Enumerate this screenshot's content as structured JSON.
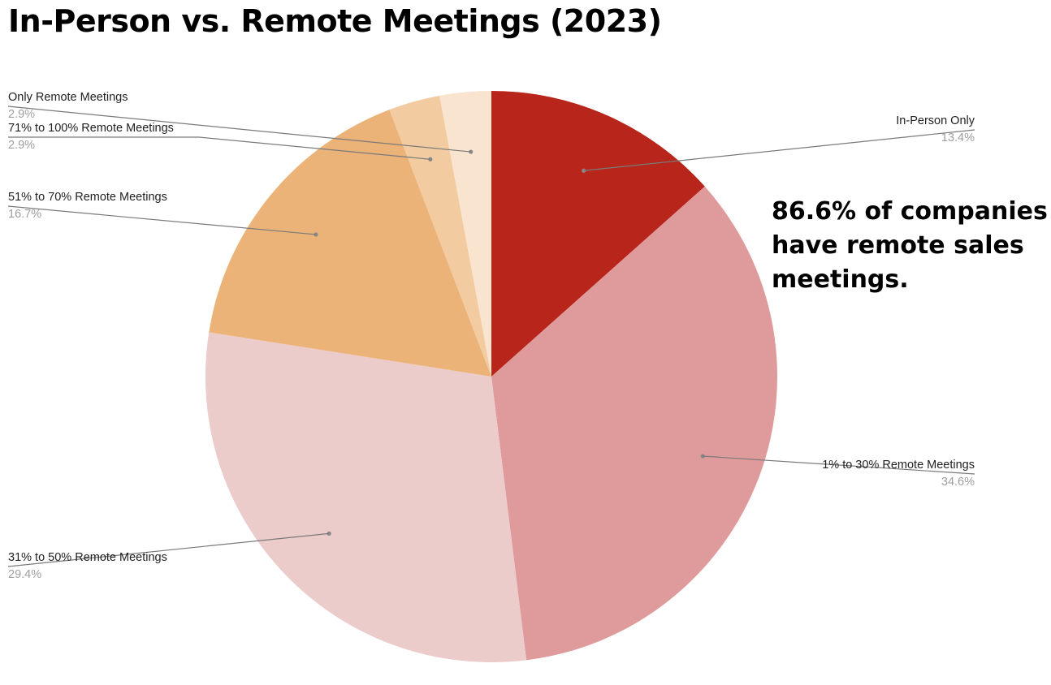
{
  "chart_data": {
    "type": "pie",
    "title": "In-Person vs. Remote Meetings (2023)",
    "annotation": "86.6% of companies have remote sales meetings.",
    "slices": [
      {
        "name": "In-Person Only",
        "value": 13.4,
        "label": "13.4%",
        "color": "#b8251b"
      },
      {
        "name": "1% to 30% Remote Meetings",
        "value": 34.6,
        "label": "34.6%",
        "color": "#df9b9b"
      },
      {
        "name": "31% to 50% Remote Meetings",
        "value": 29.4,
        "label": "29.4%",
        "color": "#eccbcb"
      },
      {
        "name": "51% to 70% Remote Meetings",
        "value": 16.7,
        "label": "16.7%",
        "color": "#ebb377"
      },
      {
        "name": "71% to 100% Remote Meetings",
        "value": 2.9,
        "label": "2.9%",
        "color": "#f2cba0"
      },
      {
        "name": "Only Remote Meetings",
        "value": 2.9,
        "label": "2.9%",
        "color": "#f8e4cf"
      }
    ]
  }
}
